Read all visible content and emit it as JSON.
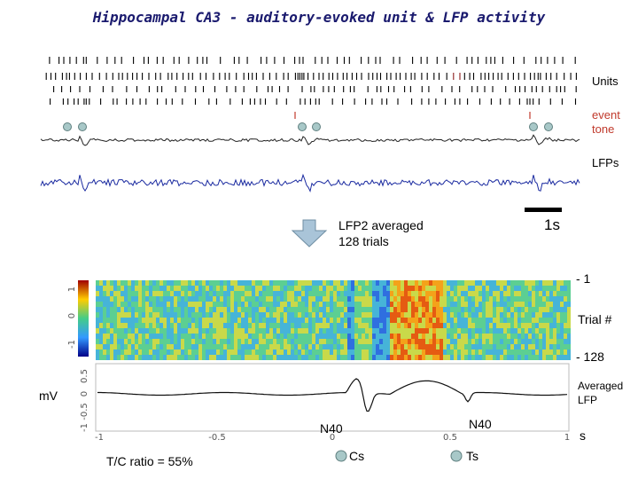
{
  "title": "Hippocampal CA3 - auditory-evoked unit & LFP activity",
  "labels": {
    "units": "Units",
    "event_tone": [
      "event",
      "tone"
    ],
    "lfps": "LFPs",
    "scale_bar": "1s",
    "averaged_note": [
      "LFP2 averaged",
      "128 trials"
    ],
    "trial_top": "- 1",
    "trial_axis": "Trial #",
    "trial_bottom": "- 128",
    "mv": "mV",
    "averaged_lfp": [
      "Averaged",
      "LFP"
    ],
    "n40_left": "N40",
    "n40_right": "N40",
    "s_unit": "s",
    "tc_ratio": "T/C ratio = 55%",
    "cs": "Cs",
    "ts": "Ts"
  },
  "heatmap_yticks": [
    "1",
    "0",
    "-1"
  ],
  "avg_yticks": [
    "0.5",
    "0",
    "-0.5",
    "-1"
  ],
  "avg_xticks": [
    "-1",
    "-0.5",
    "0",
    "0.5",
    "1"
  ],
  "colors": {
    "lfp1": "#222222",
    "lfp2": "#1a2aa0",
    "marker": "#a8c8c8",
    "arrow": "#a9c4d8",
    "event_red": "#c0392b"
  }
}
